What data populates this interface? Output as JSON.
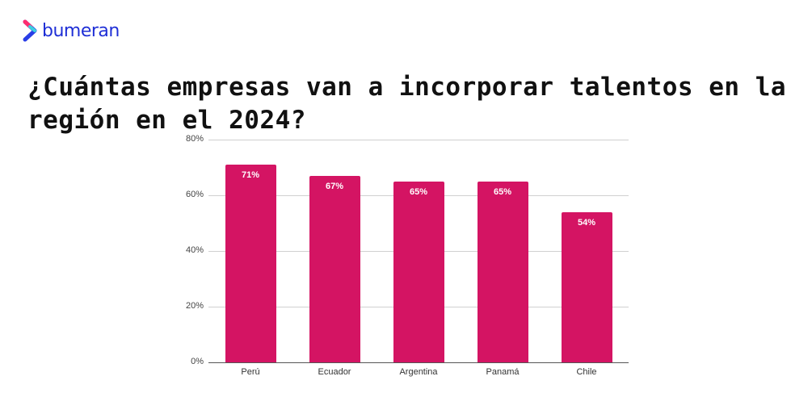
{
  "brand": {
    "name": "bumeran",
    "color": "#1f2fd6",
    "mark_colors": [
      "#ff2d6f",
      "#3cd0e0",
      "#2a3ee6"
    ]
  },
  "title": "¿Cuántas empresas van a incorporar talentos en la región en el 2024?",
  "chart_data": {
    "type": "bar",
    "title": "¿Cuántas empresas van a incorporar talentos en la región en el 2024?",
    "categories": [
      "Perú",
      "Ecuador",
      "Argentina",
      "Panamá",
      "Chile"
    ],
    "values": [
      71,
      67,
      65,
      65,
      54
    ],
    "value_labels": [
      "71%",
      "67%",
      "65%",
      "65%",
      "54%"
    ],
    "xlabel": "",
    "ylabel": "",
    "ylim": [
      0,
      80
    ],
    "yticks": [
      "0%",
      "20%",
      "40%",
      "60%",
      "80%"
    ],
    "grid": true,
    "legend": "none",
    "bar_color": "#d41463"
  }
}
